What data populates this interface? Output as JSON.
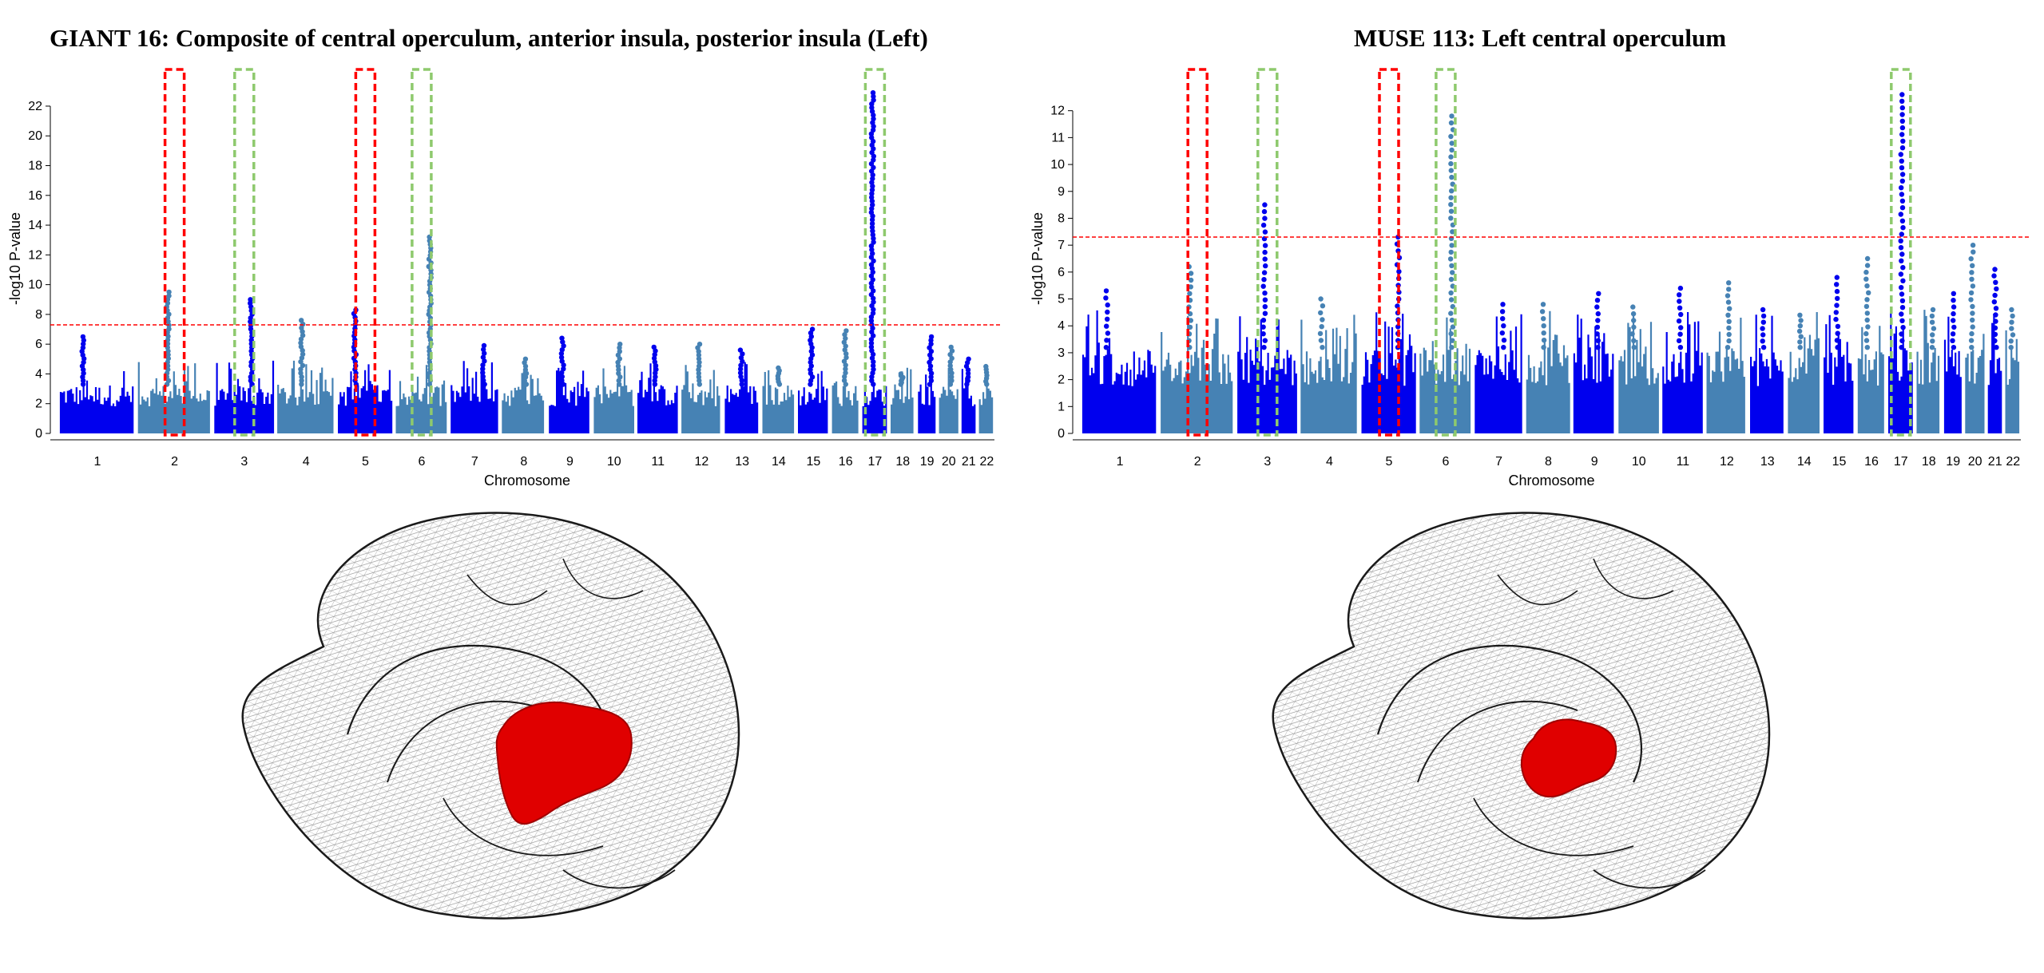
{
  "chart_data": [
    {
      "type": "scatter",
      "subtype": "manhattan",
      "title": "GIANT 16: Composite of central operculum, anterior insula, posterior insula (Left)",
      "xlabel": "Chromosome",
      "ylabel": "-log10 P-value",
      "ylim": [
        0,
        23.5
      ],
      "yticks": [
        0,
        2,
        4,
        6,
        8,
        10,
        12,
        14,
        16,
        18,
        20,
        22
      ],
      "threshold": 7.3,
      "chromosomes": [
        "1",
        "2",
        "3",
        "4",
        "5",
        "6",
        "7",
        "8",
        "9",
        "10",
        "11",
        "12",
        "13",
        "14",
        "15",
        "16",
        "17",
        "18",
        "19",
        "20",
        "21",
        "22"
      ],
      "chromosome_peaks": [
        6.5,
        9.5,
        9.0,
        7.6,
        8.3,
        13.2,
        5.9,
        5.0,
        6.4,
        6.0,
        5.8,
        6.0,
        5.6,
        4.4,
        7.0,
        6.9,
        22.9,
        4.0,
        6.5,
        5.8,
        5.0,
        4.5
      ],
      "highlight_red": [
        "2",
        "5"
      ],
      "highlight_green": [
        "3",
        "6",
        "17"
      ],
      "colors": {
        "odd": "#0000ee",
        "even": "#4682b4",
        "threshold": "#ff0000",
        "red_box": "#ff0000",
        "green_box": "#8ec96d"
      }
    },
    {
      "type": "scatter",
      "subtype": "manhattan",
      "title": "MUSE 113: Left central operculum",
      "xlabel": "Chromosome",
      "ylabel": "-log10 P-value",
      "ylim": [
        0,
        13
      ],
      "yticks": [
        0,
        1,
        2,
        3,
        4,
        5,
        6,
        7,
        8,
        9,
        10,
        11,
        12
      ],
      "threshold": 7.3,
      "chromosomes": [
        "1",
        "2",
        "3",
        "4",
        "5",
        "6",
        "7",
        "8",
        "9",
        "10",
        "11",
        "12",
        "13",
        "14",
        "15",
        "16",
        "17",
        "18",
        "19",
        "20",
        "21",
        "22"
      ],
      "chromosome_peaks": [
        5.3,
        6.2,
        8.5,
        5.0,
        7.3,
        11.8,
        4.8,
        4.8,
        5.2,
        4.7,
        5.4,
        5.6,
        4.6,
        4.4,
        5.8,
        6.5,
        12.6,
        4.6,
        5.2,
        7.0,
        6.1,
        4.6
      ],
      "highlight_red": [
        "2",
        "5"
      ],
      "highlight_green": [
        "3",
        "6",
        "17"
      ],
      "colors": {
        "odd": "#0000ee",
        "even": "#4682b4",
        "threshold": "#ff0000",
        "red_box": "#ff0000",
        "green_box": "#8ec96d"
      }
    }
  ],
  "brains": {
    "mesh_color": "#1a1a1a",
    "region_color": "#e00000"
  }
}
